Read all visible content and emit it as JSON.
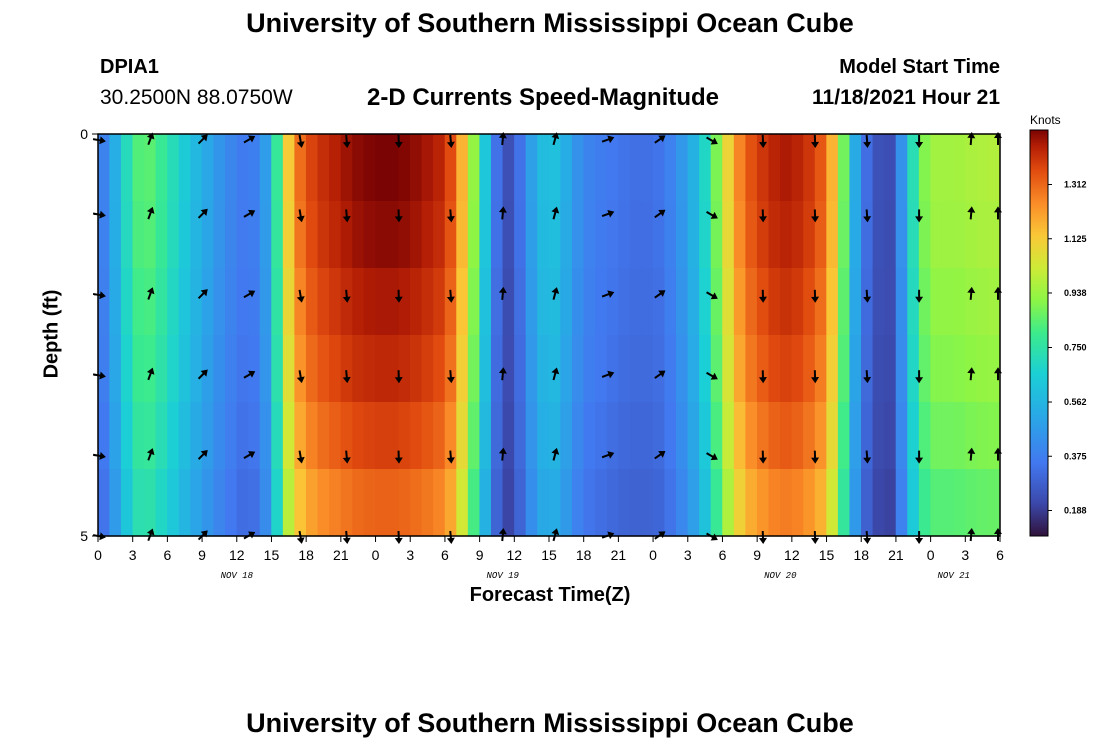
{
  "page": {
    "title": "University of Southern Mississippi Ocean Cube",
    "title_repeat": "University of Southern Mississippi Ocean Cube",
    "station_id": "DPIA1",
    "station_coords": "30.2500N  88.0750W",
    "model_start_label": "Model Start Time",
    "model_start_value": "11/18/2021 Hour 21"
  },
  "chart_data": {
    "type": "heatmap",
    "title": "2-D Currents Speed-Magnitude",
    "xlabel": "Forecast Time(Z)",
    "ylabel": "Depth (ft)",
    "x_hours_range": [
      0,
      78
    ],
    "ylim": [
      0,
      5
    ],
    "y_ticks": [
      {
        "value": 0,
        "label": "0"
      },
      {
        "value": 5,
        "label": "5"
      }
    ],
    "x_tick_labels": [
      "0",
      "3",
      "6",
      "9",
      "12",
      "15",
      "18",
      "21",
      "0",
      "3",
      "6",
      "9",
      "12",
      "15",
      "18",
      "21",
      "0",
      "3",
      "6",
      "9",
      "12",
      "15",
      "18",
      "21",
      "0",
      "3",
      "6"
    ],
    "date_labels": [
      {
        "label": "NOV 18",
        "hour": 12
      },
      {
        "label": "NOV 19",
        "hour": 35
      },
      {
        "label": "NOV 20",
        "hour": 59
      },
      {
        "label": "NOV 21",
        "hour": 74
      }
    ],
    "colorbar": {
      "units": "Knots",
      "range": [
        0.1,
        1.5
      ],
      "ticks": [
        "0.188",
        "0.375",
        "0.562",
        "0.750",
        "0.938",
        "1.125",
        "1.312"
      ]
    },
    "speed_by_hour": [
      [
        0,
        0.33
      ],
      [
        1,
        0.45
      ],
      [
        2,
        0.62
      ],
      [
        3,
        0.8
      ],
      [
        4,
        0.86
      ],
      [
        5,
        0.82
      ],
      [
        6,
        0.75
      ],
      [
        7,
        0.68
      ],
      [
        8,
        0.6
      ],
      [
        9,
        0.54
      ],
      [
        10,
        0.48
      ],
      [
        11,
        0.42
      ],
      [
        12,
        0.38
      ],
      [
        13,
        0.35
      ],
      [
        14,
        0.4
      ],
      [
        15,
        0.55
      ],
      [
        16,
        1.0
      ],
      [
        17,
        1.25
      ],
      [
        18,
        1.35
      ],
      [
        19,
        1.4
      ],
      [
        20,
        1.43
      ],
      [
        21,
        1.45
      ],
      [
        22,
        1.48
      ],
      [
        24,
        1.5
      ],
      [
        26,
        1.5
      ],
      [
        28,
        1.47
      ],
      [
        30,
        1.42
      ],
      [
        31,
        1.3
      ],
      [
        32,
        1.05
      ],
      [
        33,
        0.8
      ],
      [
        34,
        0.45
      ],
      [
        35,
        0.22
      ],
      [
        36,
        0.25
      ],
      [
        37,
        0.42
      ],
      [
        38,
        0.55
      ],
      [
        39,
        0.62
      ],
      [
        40,
        0.58
      ],
      [
        41,
        0.48
      ],
      [
        42,
        0.4
      ],
      [
        44,
        0.36
      ],
      [
        46,
        0.33
      ],
      [
        48,
        0.33
      ],
      [
        49,
        0.35
      ],
      [
        50,
        0.42
      ],
      [
        51,
        0.5
      ],
      [
        52,
        0.6
      ],
      [
        53,
        0.78
      ],
      [
        54,
        1.0
      ],
      [
        55,
        1.2
      ],
      [
        56,
        1.32
      ],
      [
        57,
        1.38
      ],
      [
        58,
        1.42
      ],
      [
        59,
        1.45
      ],
      [
        60,
        1.45
      ],
      [
        61,
        1.42
      ],
      [
        62,
        1.38
      ],
      [
        63,
        1.3
      ],
      [
        64,
        1.05
      ],
      [
        65,
        0.7
      ],
      [
        66,
        0.35
      ],
      [
        67,
        0.3
      ],
      [
        68,
        0.18
      ],
      [
        69,
        0.28
      ],
      [
        70,
        0.6
      ],
      [
        71,
        0.85
      ],
      [
        72,
        0.95
      ],
      [
        74,
        0.95
      ],
      [
        76,
        0.97
      ],
      [
        78,
        0.98
      ]
    ],
    "depth_factor": [
      1.0,
      0.99,
      0.97,
      0.95,
      0.92,
      0.88
    ],
    "arrow_rows": [
      0,
      1,
      2,
      3,
      4,
      5
    ],
    "arrow_directions_deg": [
      {
        "hour": 0,
        "deg": 100
      },
      {
        "hour": 4.5,
        "deg": 20
      },
      {
        "hour": 9,
        "deg": 45
      },
      {
        "hour": 13,
        "deg": 60
      },
      {
        "hour": 17.5,
        "deg": 170
      },
      {
        "hour": 21.5,
        "deg": 175
      },
      {
        "hour": 26,
        "deg": 178
      },
      {
        "hour": 30.5,
        "deg": 175
      },
      {
        "hour": 35,
        "deg": 5
      },
      {
        "hour": 39.5,
        "deg": 15
      },
      {
        "hour": 44,
        "deg": 70
      },
      {
        "hour": 48.5,
        "deg": 55
      },
      {
        "hour": 53,
        "deg": 120
      },
      {
        "hour": 57.5,
        "deg": 178
      },
      {
        "hour": 62,
        "deg": 178
      },
      {
        "hour": 66.5,
        "deg": 176
      },
      {
        "hour": 71,
        "deg": 180
      },
      {
        "hour": 75.5,
        "deg": 5
      },
      {
        "hour": 78,
        "deg": 0
      }
    ]
  }
}
